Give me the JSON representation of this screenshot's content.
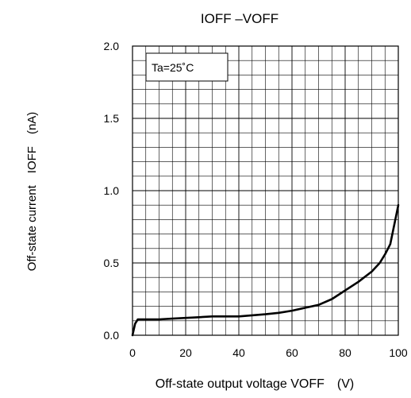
{
  "chart_data": {
    "type": "line",
    "title": "IOFF –VOFF",
    "xlabel": "Off-state output voltage VOFF　(V)",
    "ylabel": "Off-state current　IOFF　(nA)",
    "annotation": "Ta=25˚C",
    "xlim": [
      0,
      100
    ],
    "ylim": [
      0,
      2.0
    ],
    "x_ticks": [
      0,
      20,
      40,
      60,
      80,
      100
    ],
    "x_tick_labels": [
      "0",
      "20",
      "40",
      "60",
      "80",
      "100"
    ],
    "y_ticks": [
      0,
      0.5,
      1.0,
      1.5,
      2.0
    ],
    "y_tick_labels": [
      "0.0",
      "0.5",
      "1.0",
      "1.5",
      "2.0"
    ],
    "x_minor_step": 5,
    "y_minor_step": 0.1,
    "grid": true,
    "series": [
      {
        "color": "#000000",
        "x": [
          0,
          1,
          2,
          5,
          10,
          15,
          20,
          25,
          30,
          40,
          50,
          55,
          60,
          65,
          70,
          75,
          80,
          85,
          90,
          93,
          95,
          97,
          100
        ],
        "y": [
          0,
          0.08,
          0.11,
          0.11,
          0.11,
          0.115,
          0.12,
          0.125,
          0.13,
          0.13,
          0.145,
          0.155,
          0.17,
          0.19,
          0.21,
          0.25,
          0.31,
          0.37,
          0.44,
          0.5,
          0.56,
          0.63,
          0.9
        ]
      }
    ]
  }
}
